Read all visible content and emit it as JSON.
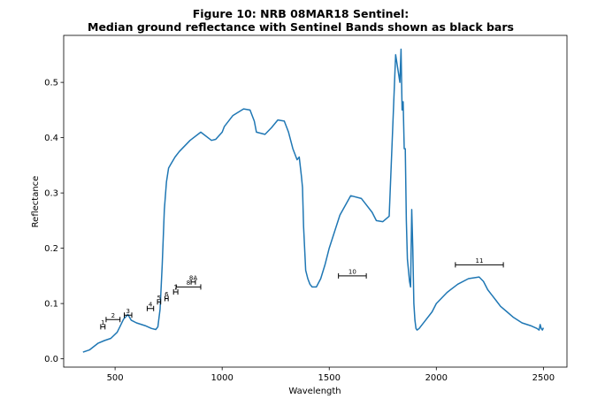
{
  "chart_data": {
    "type": "line",
    "title_line1": "Figure 10: NRB 08MAR18  Sentinel:",
    "title_line2": "Median ground reflectance with Sentinel Bands shown as black bars",
    "xlabel": "Wavelength",
    "ylabel": "Reflectance",
    "xlim": [
      260,
      2610
    ],
    "ylim": [
      -0.015,
      0.585
    ],
    "xticks": [
      500,
      1000,
      1500,
      2000,
      2500
    ],
    "yticks": [
      0.0,
      0.1,
      0.2,
      0.3,
      0.4,
      0.5
    ],
    "ytick_labels": [
      "0.0",
      "0.1",
      "0.2",
      "0.3",
      "0.4",
      "0.5"
    ],
    "grid": false,
    "line_color": "#1f77b4",
    "band_color": "#000000",
    "series": [
      {
        "x": [
          350,
          380,
          420,
          450,
          480,
          510,
          525,
          540,
          560,
          575,
          600,
          640,
          670,
          690,
          700,
          710,
          720,
          730,
          740,
          750,
          760,
          780,
          800,
          850,
          900,
          950,
          970,
          1000,
          1010,
          1050,
          1100,
          1130,
          1150,
          1160,
          1200,
          1230,
          1260,
          1290,
          1310,
          1330,
          1350,
          1360,
          1370,
          1375,
          1380,
          1390,
          1400,
          1410,
          1420,
          1440,
          1460,
          1480,
          1500,
          1550,
          1600,
          1650,
          1670,
          1700,
          1720,
          1750,
          1780,
          1810,
          1830,
          1835,
          1840,
          1845,
          1850,
          1855,
          1860,
          1865,
          1870,
          1875,
          1880,
          1885,
          1890,
          1895,
          1900,
          1905,
          1910,
          1920,
          1930,
          1950,
          1980,
          2000,
          2050,
          2100,
          2150,
          2200,
          2220,
          2240,
          2260,
          2280,
          2300,
          2330,
          2360,
          2400,
          2440,
          2470,
          2480,
          2485,
          2490,
          2495,
          2500
        ],
        "y": [
          0.012,
          0.016,
          0.028,
          0.033,
          0.037,
          0.048,
          0.06,
          0.072,
          0.08,
          0.07,
          0.065,
          0.06,
          0.055,
          0.053,
          0.058,
          0.09,
          0.17,
          0.27,
          0.32,
          0.345,
          0.352,
          0.365,
          0.375,
          0.395,
          0.41,
          0.395,
          0.397,
          0.41,
          0.42,
          0.44,
          0.452,
          0.45,
          0.43,
          0.41,
          0.406,
          0.418,
          0.432,
          0.43,
          0.41,
          0.38,
          0.36,
          0.365,
          0.33,
          0.31,
          0.24,
          0.16,
          0.145,
          0.135,
          0.13,
          0.13,
          0.145,
          0.17,
          0.2,
          0.26,
          0.295,
          0.29,
          0.28,
          0.265,
          0.25,
          0.248,
          0.258,
          0.55,
          0.5,
          0.56,
          0.45,
          0.465,
          0.38,
          0.38,
          0.25,
          0.18,
          0.16,
          0.14,
          0.13,
          0.27,
          0.2,
          0.1,
          0.07,
          0.055,
          0.052,
          0.055,
          0.06,
          0.07,
          0.085,
          0.1,
          0.12,
          0.135,
          0.145,
          0.148,
          0.14,
          0.125,
          0.115,
          0.105,
          0.095,
          0.085,
          0.075,
          0.065,
          0.06,
          0.055,
          0.052,
          0.062,
          0.055,
          0.052,
          0.056
        ]
      }
    ],
    "bands": [
      {
        "label": "1",
        "x1": 433,
        "x2": 453,
        "y": 0.058
      },
      {
        "label": "2",
        "x1": 458,
        "x2": 523,
        "y": 0.071
      },
      {
        "label": "3",
        "x1": 543,
        "x2": 578,
        "y": 0.079
      },
      {
        "label": "4",
        "x1": 650,
        "x2": 680,
        "y": 0.091
      },
      {
        "label": "5",
        "x1": 698,
        "x2": 713,
        "y": 0.103
      },
      {
        "label": "6",
        "x1": 733,
        "x2": 748,
        "y": 0.109
      },
      {
        "label": "7",
        "x1": 773,
        "x2": 793,
        "y": 0.121
      },
      {
        "label": "8",
        "x1": 785,
        "x2": 900,
        "y": 0.13
      },
      {
        "label": "8A",
        "x1": 855,
        "x2": 875,
        "y": 0.139
      },
      {
        "label": "10",
        "x1": 1543,
        "x2": 1673,
        "y": 0.15
      },
      {
        "label": "11",
        "x1": 2089,
        "x2": 2313,
        "y": 0.17
      }
    ]
  }
}
